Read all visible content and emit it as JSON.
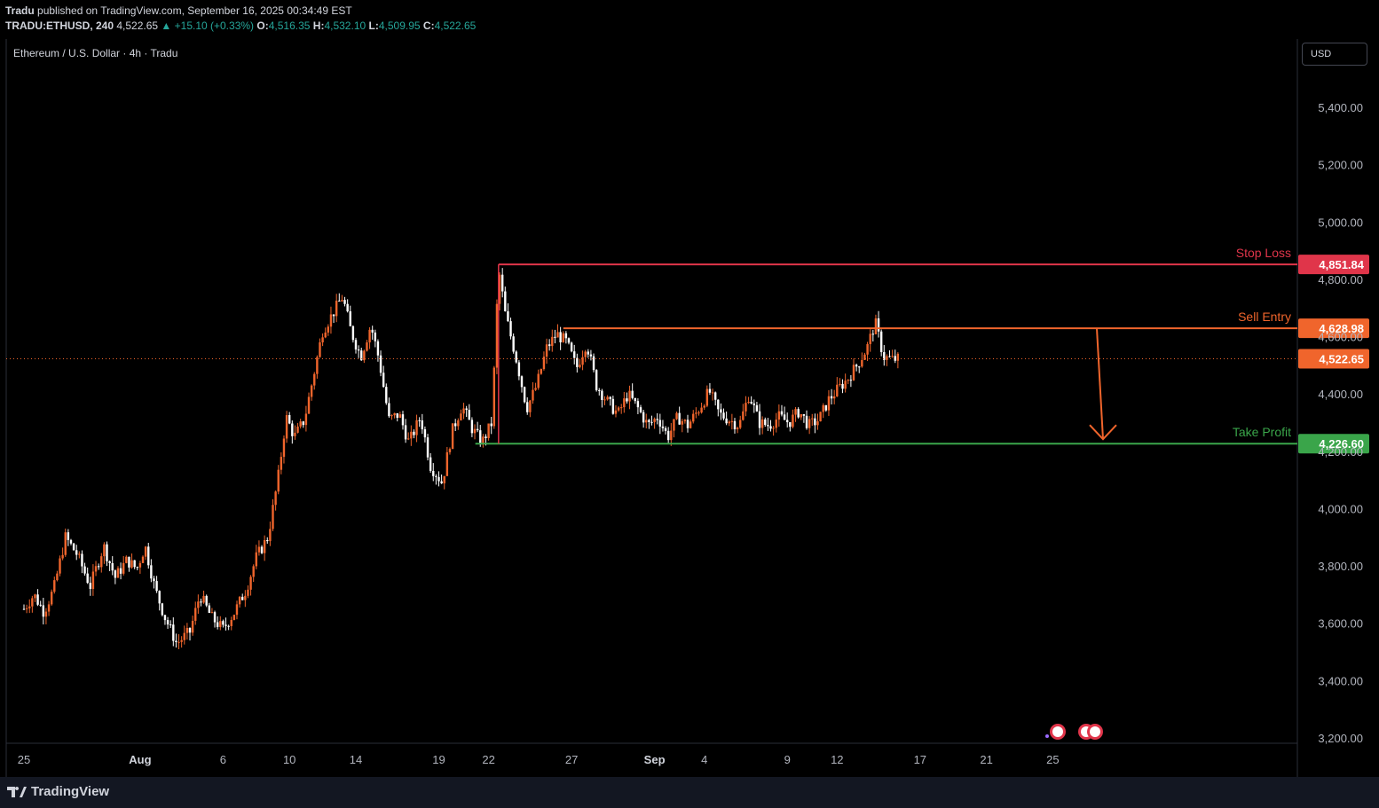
{
  "header": {
    "publisher": "Tradu",
    "published_text": "published on TradingView.com, September 16, 2025 00:34:49 EST",
    "symbol": "TRADU:ETHUSD, 240",
    "last": "4,522.65",
    "change": "▲ +15.10 (+0.33%)",
    "o_label": "O:",
    "o": "4,516.35",
    "h_label": "H:",
    "h": "4,532.10",
    "l_label": "L:",
    "l": "4,509.95",
    "c_label": "C:",
    "c": "4,522.65"
  },
  "chart_label": "Ethereum / U.S. Dollar · 4h · Tradu",
  "currency_button": "USD",
  "footer": {
    "brand": "TradingView"
  },
  "colors": {
    "bull": "#f0652c",
    "bear": "#ffffff",
    "stop_loss": "#e0354a",
    "sell_entry": "#f0652c",
    "take_profit": "#3aa54a",
    "current_price": "#f0652c",
    "axis_text": "#b2b5be"
  },
  "chart_data": {
    "type": "candlestick",
    "title": "Ethereum / U.S. Dollar · 4h · Tradu",
    "ylim": [
      3180,
      5620
    ],
    "y_ticks": [
      {
        "value": 3200,
        "label": "3,200.00"
      },
      {
        "value": 3400,
        "label": "3,400.00"
      },
      {
        "value": 3600,
        "label": "3,600.00"
      },
      {
        "value": 3800,
        "label": "3,800.00"
      },
      {
        "value": 4000,
        "label": "4,000.00"
      },
      {
        "value": 4200,
        "label": "4,200.00"
      },
      {
        "value": 4400,
        "label": "4,400.00"
      },
      {
        "value": 4600,
        "label": "4,600.00"
      },
      {
        "value": 4800,
        "label": "4,800.00"
      },
      {
        "value": 5000,
        "label": "5,000.00"
      },
      {
        "value": 5200,
        "label": "5,200.00"
      },
      {
        "value": 5400,
        "label": "5,400.00"
      }
    ],
    "x_ticks": [
      {
        "day": 0,
        "label": "25"
      },
      {
        "day": 7,
        "label": "Aug"
      },
      {
        "day": 12,
        "label": "6"
      },
      {
        "day": 16,
        "label": "10"
      },
      {
        "day": 20,
        "label": "14"
      },
      {
        "day": 25,
        "label": "19"
      },
      {
        "day": 28,
        "label": "22"
      },
      {
        "day": 33,
        "label": "27"
      },
      {
        "day": 38,
        "label": "Sep"
      },
      {
        "day": 41,
        "label": "4"
      },
      {
        "day": 46,
        "label": "9"
      },
      {
        "day": 49,
        "label": "12"
      },
      {
        "day": 54,
        "label": "17"
      },
      {
        "day": 58,
        "label": "21"
      },
      {
        "day": 62,
        "label": "25"
      }
    ],
    "levels": [
      {
        "name": "Stop Loss",
        "value": 4851.84,
        "label": "4,851.84"
      },
      {
        "name": "Sell Entry",
        "value": 4628.98,
        "label": "4,628.98"
      },
      {
        "name": "Take Profit",
        "value": 4226.6,
        "label": "4,226.60"
      }
    ],
    "current_price": {
      "value": 4522.65,
      "label": "4,522.65"
    },
    "projection": {
      "from_value": 4628.98,
      "to_value": 4226.6
    },
    "close_path": [
      [
        0,
        3650
      ],
      [
        0.6,
        3700
      ],
      [
        1.2,
        3640
      ],
      [
        1.8,
        3720
      ],
      [
        2.5,
        3900
      ],
      [
        3.2,
        3840
      ],
      [
        4,
        3730
      ],
      [
        4.8,
        3870
      ],
      [
        5.5,
        3760
      ],
      [
        6.2,
        3820
      ],
      [
        6.8,
        3790
      ],
      [
        7.3,
        3870
      ],
      [
        7.9,
        3720
      ],
      [
        8.5,
        3620
      ],
      [
        9.2,
        3530
      ],
      [
        10,
        3570
      ],
      [
        10.6,
        3700
      ],
      [
        11.3,
        3620
      ],
      [
        12,
        3580
      ],
      [
        12.7,
        3640
      ],
      [
        13.4,
        3720
      ],
      [
        14,
        3830
      ],
      [
        14.7,
        3900
      ],
      [
        15.3,
        4100
      ],
      [
        15.8,
        4320
      ],
      [
        16.3,
        4250
      ],
      [
        16.9,
        4310
      ],
      [
        17.4,
        4450
      ],
      [
        18,
        4620
      ],
      [
        18.6,
        4680
      ],
      [
        19.2,
        4740
      ],
      [
        19.7,
        4620
      ],
      [
        20.3,
        4530
      ],
      [
        20.9,
        4640
      ],
      [
        21.4,
        4520
      ],
      [
        22,
        4310
      ],
      [
        22.6,
        4330
      ],
      [
        23.2,
        4230
      ],
      [
        23.9,
        4320
      ],
      [
        24.5,
        4150
      ],
      [
        25.2,
        4090
      ],
      [
        25.8,
        4270
      ],
      [
        26.4,
        4360
      ],
      [
        27,
        4280
      ],
      [
        27.6,
        4230
      ],
      [
        28.2,
        4300
      ],
      [
        28.6,
        4840
      ],
      [
        29,
        4680
      ],
      [
        29.6,
        4540
      ],
      [
        30.3,
        4350
      ],
      [
        30.9,
        4430
      ],
      [
        31.5,
        4560
      ],
      [
        32.1,
        4610
      ],
      [
        32.7,
        4580
      ],
      [
        33.3,
        4490
      ],
      [
        33.9,
        4580
      ],
      [
        34.5,
        4430
      ],
      [
        35.2,
        4370
      ],
      [
        35.8,
        4330
      ],
      [
        36.4,
        4400
      ],
      [
        37,
        4350
      ],
      [
        37.6,
        4290
      ],
      [
        38.2,
        4320
      ],
      [
        38.8,
        4250
      ],
      [
        39.4,
        4320
      ],
      [
        40,
        4290
      ],
      [
        40.7,
        4350
      ],
      [
        41.3,
        4410
      ],
      [
        41.9,
        4330
      ],
      [
        42.5,
        4310
      ],
      [
        43.1,
        4290
      ],
      [
        43.7,
        4400
      ],
      [
        44.3,
        4300
      ],
      [
        44.9,
        4290
      ],
      [
        45.5,
        4320
      ],
      [
        46.1,
        4300
      ],
      [
        46.7,
        4340
      ],
      [
        47.3,
        4290
      ],
      [
        47.9,
        4310
      ],
      [
        48.5,
        4380
      ],
      [
        49.1,
        4420
      ],
      [
        49.6,
        4450
      ],
      [
        50.2,
        4500
      ],
      [
        50.8,
        4560
      ],
      [
        51.3,
        4650
      ],
      [
        51.8,
        4530
      ],
      [
        52.3,
        4520
      ],
      [
        52.8,
        4522.65
      ]
    ]
  }
}
